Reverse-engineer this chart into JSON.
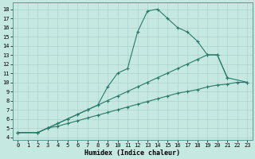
{
  "xlabel": "Humidex (Indice chaleur)",
  "x_ticks": [
    0,
    1,
    2,
    3,
    4,
    5,
    6,
    7,
    8,
    9,
    10,
    11,
    12,
    13,
    14,
    15,
    16,
    17,
    18,
    19,
    20,
    21,
    22,
    23
  ],
  "y_ticks": [
    4,
    5,
    6,
    7,
    8,
    9,
    10,
    11,
    12,
    13,
    14,
    15,
    16,
    17,
    18
  ],
  "xlim": [
    -0.5,
    23.5
  ],
  "ylim": [
    3.7,
    18.7
  ],
  "line_color": "#2a7a6a",
  "bg_color": "#c5e8e0",
  "grid_color": "#a8ccca",
  "line1_x": [
    0,
    2,
    3,
    4,
    5,
    6,
    7,
    8,
    9,
    10,
    11,
    12,
    13,
    14,
    15,
    16,
    17,
    18,
    19,
    20,
    21
  ],
  "line1_y": [
    4.5,
    4.5,
    5.0,
    5.5,
    6.0,
    6.5,
    7.0,
    7.5,
    9.5,
    11.0,
    11.5,
    15.5,
    17.8,
    18.0,
    17.0,
    16.0,
    15.5,
    14.5,
    13.0,
    13.0,
    10.5
  ],
  "line2_x": [
    0,
    2,
    3,
    4,
    5,
    6,
    7,
    8,
    9,
    10,
    11,
    12,
    13,
    14,
    15,
    16,
    17,
    18,
    19,
    20,
    21,
    23
  ],
  "line2_y": [
    4.5,
    4.5,
    5.0,
    5.5,
    6.0,
    6.5,
    7.0,
    7.5,
    8.0,
    8.5,
    9.0,
    9.5,
    10.0,
    10.5,
    11.0,
    11.5,
    12.0,
    12.5,
    13.0,
    13.0,
    10.5,
    10.0
  ],
  "line3_x": [
    0,
    2,
    3,
    4,
    5,
    6,
    7,
    8,
    9,
    10,
    11,
    12,
    13,
    14,
    15,
    16,
    17,
    18,
    19,
    20,
    21,
    22,
    23
  ],
  "line3_y": [
    4.5,
    4.5,
    5.0,
    5.2,
    5.5,
    5.8,
    6.1,
    6.4,
    6.7,
    7.0,
    7.3,
    7.6,
    7.9,
    8.2,
    8.5,
    8.8,
    9.0,
    9.2,
    9.5,
    9.7,
    9.8,
    10.0,
    10.0
  ]
}
